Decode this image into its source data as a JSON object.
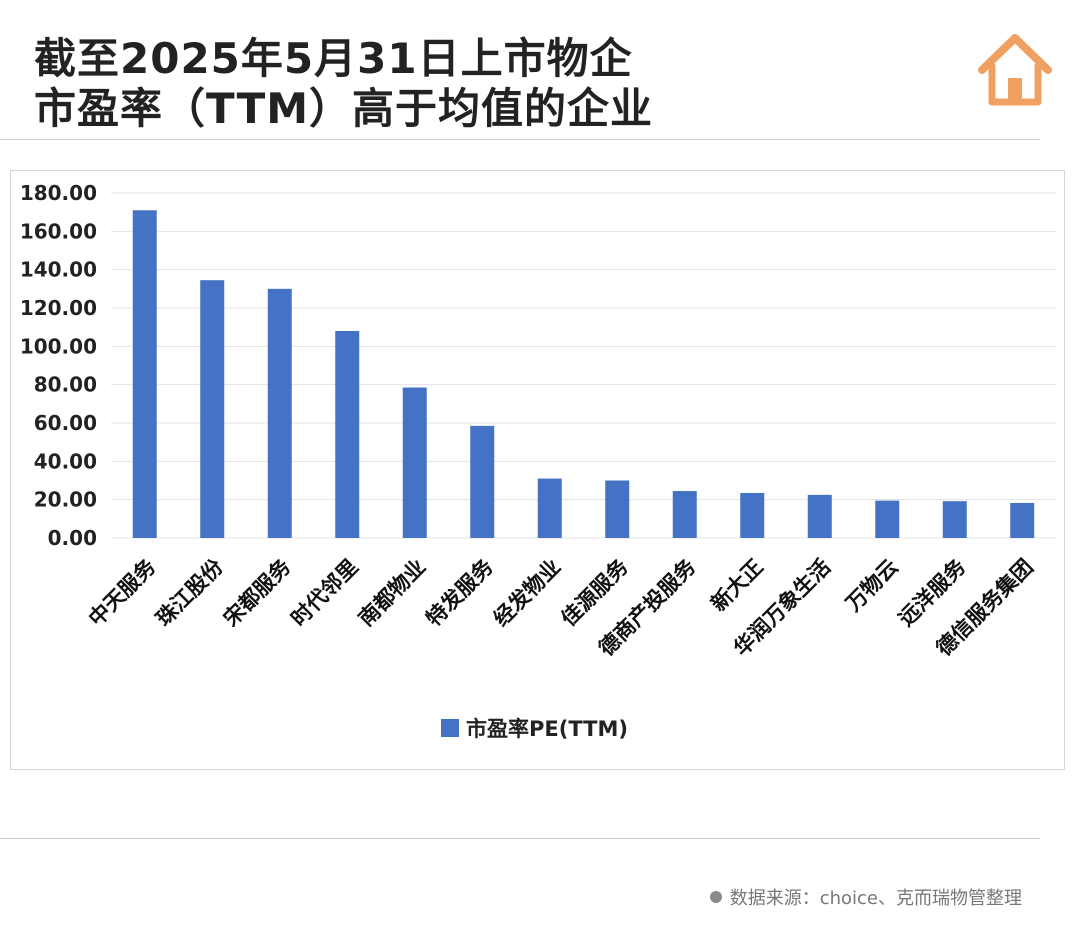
{
  "header": {
    "title_line1": "截至2025年5月31日上市物企",
    "title_line2": "市盈率（TTM）高于均值的企业"
  },
  "colors": {
    "bar": "#4472c4",
    "house_icon": "#f0a060",
    "grid": "#e3e3e3"
  },
  "icons": {
    "logo": "house-icon",
    "source_marker": "dot-icon"
  },
  "chart_data": {
    "type": "bar",
    "title": "",
    "xlabel": "",
    "ylabel": "",
    "ylim": [
      0,
      180
    ],
    "yticks": [
      "0.00",
      "20.00",
      "40.00",
      "60.00",
      "80.00",
      "100.00",
      "120.00",
      "140.00",
      "160.00",
      "180.00"
    ],
    "grid": true,
    "legend_position": "bottom",
    "categories": [
      "中天服务",
      "珠江股份",
      "宋都服务",
      "时代邻里",
      "南都物业",
      "特发服务",
      "经发物业",
      "佳源服务",
      "德商产投服务",
      "新大正",
      "华润万象生活",
      "万物云",
      "远洋服务",
      "德信服务集团"
    ],
    "series": [
      {
        "name": "市盈率PE(TTM)",
        "values": [
          171,
          134.5,
          130,
          108,
          78.5,
          58.5,
          31,
          30,
          24.5,
          23.5,
          22.5,
          19.5,
          19.2,
          18.3
        ]
      }
    ]
  },
  "footer": {
    "source": "数据来源：choice、克而瑞物管整理"
  }
}
